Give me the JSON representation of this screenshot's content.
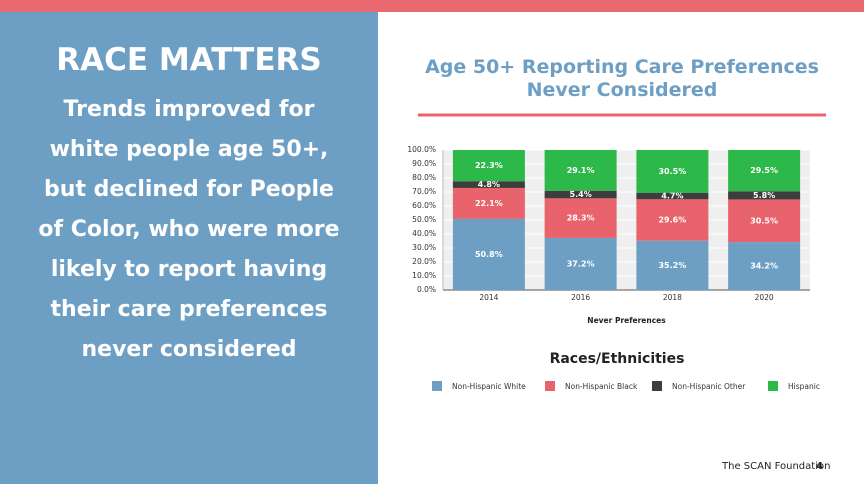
{
  "slide": {
    "heading": "RACE MATTERS",
    "body_lines": [
      "Trends improved for",
      "white people age 50+,",
      "but declined for People",
      "of Color, who were more",
      "likely to report having",
      "their care preferences",
      "never considered"
    ],
    "footer": "The SCAN Foundation",
    "page_number": 4
  },
  "chart_data": {
    "type": "stacked_bar",
    "title": "Age 50+ Reporting Care Preferences Never Considered",
    "x_label": "Never Preferences",
    "legend_title": "Races/Ethnicities",
    "legend": "bottom",
    "grid": true,
    "categories": [
      "2014",
      "2016",
      "2018",
      "2020"
    ],
    "ylim": [
      0,
      100
    ],
    "yticks": [
      {
        "value": 0,
        "label": "0.0%"
      },
      {
        "value": 10,
        "label": "10.0%"
      },
      {
        "value": 20,
        "label": "20.0%"
      },
      {
        "value": 30,
        "label": "30.0%"
      },
      {
        "value": 40,
        "label": "40.0%"
      },
      {
        "value": 50,
        "label": "50.0%"
      },
      {
        "value": 60,
        "label": "60.0%"
      },
      {
        "value": 70,
        "label": "70.0%"
      },
      {
        "value": 80,
        "label": "80.0%"
      },
      {
        "value": 90,
        "label": "90.0%"
      },
      {
        "value": 100,
        "label": "100.0%"
      }
    ],
    "series": [
      {
        "name": "Non-Hispanic White",
        "color": "#6d9fc5",
        "values": [
          50.8,
          37.2,
          35.2,
          34.2
        ],
        "value_labels": [
          "50.8%",
          "37.2%",
          "35.2%",
          "34.2%"
        ]
      },
      {
        "name": "Non-Hispanic Black",
        "color": "#e8636b",
        "values": [
          22.1,
          28.3,
          29.6,
          30.5
        ],
        "value_labels": [
          "22.1%",
          "28.3%",
          "29.6%",
          "30.5%"
        ]
      },
      {
        "name": "Non-Hispanic Other",
        "color": "#3d3d3d",
        "values": [
          4.8,
          5.4,
          4.7,
          5.8
        ],
        "value_labels": [
          "4.8%",
          "5.4%",
          "4.7%",
          "5.8%"
        ]
      },
      {
        "name": "Hispanic",
        "color": "#2db84a",
        "values": [
          22.3,
          29.1,
          30.5,
          29.5
        ],
        "value_labels": [
          "22.3%",
          "29.1%",
          "30.5%",
          "29.5%"
        ]
      }
    ]
  }
}
